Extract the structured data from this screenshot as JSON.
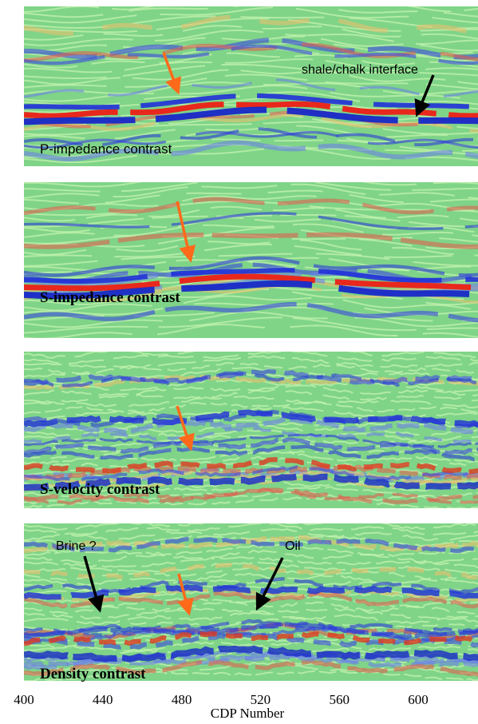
{
  "panels": [
    {
      "label": "P-impedance contrast"
    },
    {
      "label": "S-impedance contrast"
    },
    {
      "label": "S-velocity contrast"
    },
    {
      "label": "Density contrast"
    }
  ],
  "annotations": {
    "shale": "shale/chalk interface",
    "brine": "Brine ?",
    "oil": "Oil"
  },
  "x_axis": {
    "label": "CDP Number",
    "ticks": [
      400,
      440,
      480,
      520,
      560,
      600
    ]
  }
}
